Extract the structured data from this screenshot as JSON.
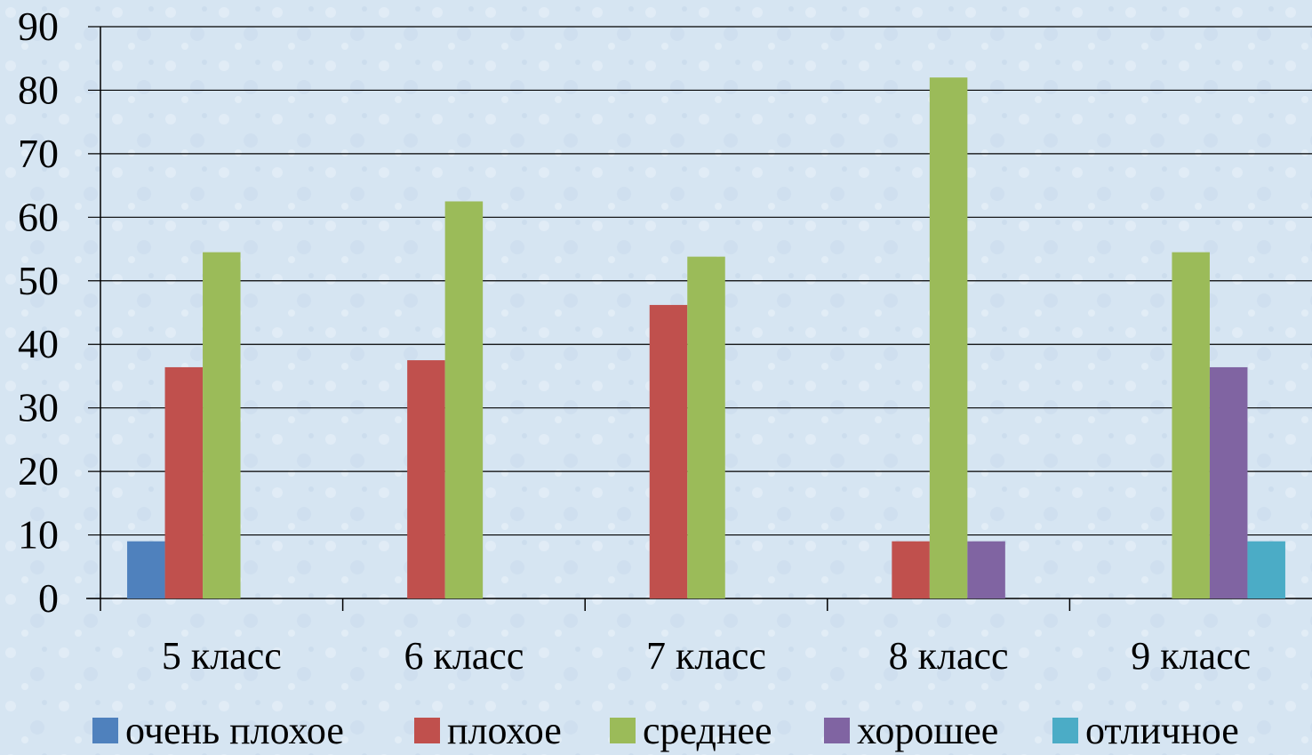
{
  "chart_data": {
    "type": "bar",
    "categories": [
      "5 класс",
      "6 класс",
      "7 класс",
      "8 класс",
      "9 класс"
    ],
    "series": [
      {
        "name": "очень плохое",
        "color": "#4f81bd",
        "values": [
          9,
          0,
          0,
          0,
          0
        ]
      },
      {
        "name": "плохое",
        "color": "#c0504d",
        "values": [
          36.4,
          37.5,
          46.2,
          9,
          0
        ]
      },
      {
        "name": "среднее",
        "color": "#9bbb59",
        "values": [
          54.5,
          62.5,
          53.8,
          82,
          54.5
        ]
      },
      {
        "name": "хорошее",
        "color": "#8064a2",
        "values": [
          0,
          0,
          0,
          9,
          36.4
        ]
      },
      {
        "name": "отличное",
        "color": "#4bacc6",
        "values": [
          0,
          0,
          0,
          0,
          9
        ]
      }
    ],
    "yticks": [
      "0",
      "10",
      "20",
      "30",
      "40",
      "50",
      "60",
      "70",
      "80",
      "90"
    ],
    "ylim": [
      0,
      90
    ],
    "grid": true,
    "legend_position": "bottom",
    "title": "",
    "xlabel": "",
    "ylabel": ""
  }
}
